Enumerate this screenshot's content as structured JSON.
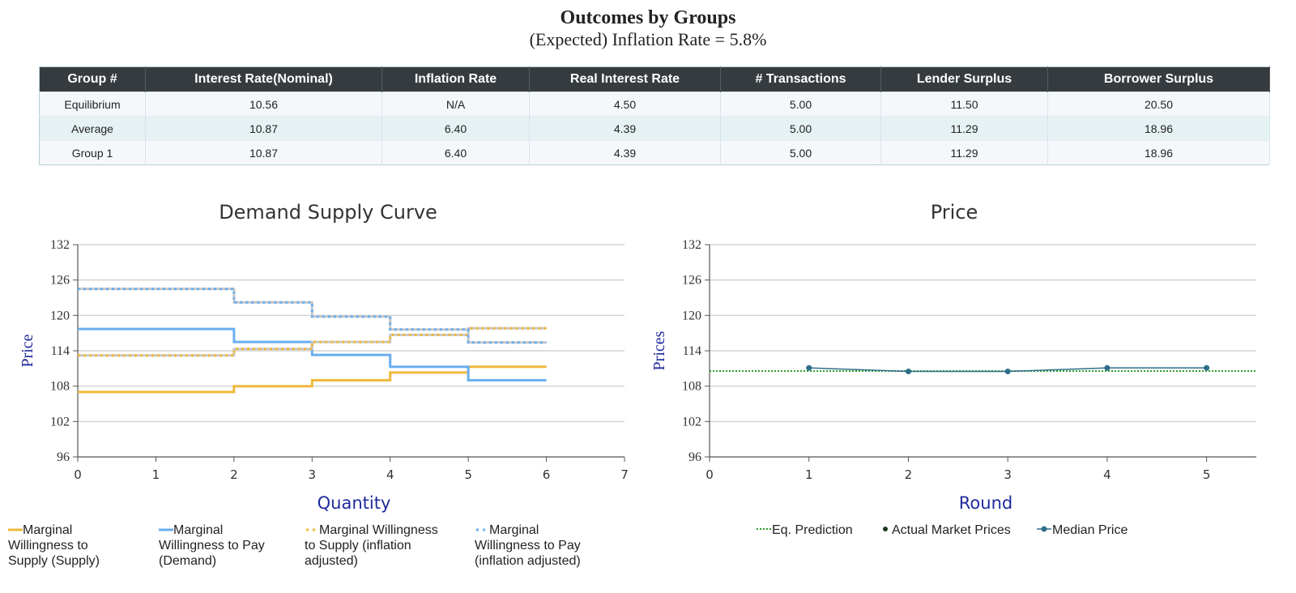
{
  "header": {
    "title": "Outcomes by Groups",
    "subtitle": "(Expected) Inflation Rate = 5.8%"
  },
  "table": {
    "columns": [
      "Group #",
      "Interest Rate(Nominal)",
      "Inflation Rate",
      "Real Interest Rate",
      "# Transactions",
      "Lender Surplus",
      "Borrower Surplus"
    ],
    "rows": [
      [
        "Equilibrium",
        "10.56",
        "N/A",
        "4.50",
        "5.00",
        "11.50",
        "20.50"
      ],
      [
        "Average",
        "10.87",
        "6.40",
        "4.39",
        "5.00",
        "11.29",
        "18.96"
      ],
      [
        "Group 1",
        "10.87",
        "6.40",
        "4.39",
        "5.00",
        "11.29",
        "18.96"
      ]
    ]
  },
  "chart_data": [
    {
      "type": "line",
      "step": true,
      "title": "Demand Supply Curve",
      "xlabel": "Quantity",
      "ylabel": "Price",
      "xlim": [
        0,
        7
      ],
      "ylim": [
        96,
        132
      ],
      "xticks": [
        0,
        1,
        2,
        3,
        4,
        5,
        6,
        7
      ],
      "yticks": [
        96,
        102,
        108,
        114,
        120,
        126,
        132
      ],
      "grid": true,
      "legend": "bottom",
      "series": [
        {
          "name": "Marginal Willingness to Supply (Supply)",
          "legend_lines": [
            "Marginal",
            "Willingness to",
            "Supply (Supply)"
          ],
          "color": "#f0b83c",
          "style": "solid",
          "x": [
            0,
            2,
            2,
            3,
            3,
            4,
            4,
            5,
            5,
            6
          ],
          "y": [
            107,
            107,
            108,
            108,
            109,
            109,
            110.3,
            110.3,
            111.3,
            111.3
          ]
        },
        {
          "name": "Marginal Willingness to Pay (Demand)",
          "legend_lines": [
            "Marginal",
            "Willingness to Pay",
            "(Demand)"
          ],
          "color": "#6aaef0",
          "style": "solid",
          "x": [
            0,
            2,
            2,
            3,
            3,
            4,
            4,
            5,
            5,
            6
          ],
          "y": [
            117.7,
            117.7,
            115.5,
            115.5,
            113.3,
            113.3,
            111.3,
            111.3,
            109,
            109
          ]
        },
        {
          "name": "Marginal Willingness to Supply (inflation adjusted)",
          "legend_lines": [
            "Marginal Willingness",
            "to Supply (inflation",
            "adjusted)"
          ],
          "color": "#f0b83c",
          "style": "dotted",
          "x": [
            0,
            2,
            2,
            3,
            3,
            4,
            4,
            5,
            5,
            6
          ],
          "y": [
            113.2,
            113.2,
            114.3,
            114.3,
            115.5,
            115.5,
            116.7,
            116.7,
            117.8,
            117.8
          ]
        },
        {
          "name": "Marginal Willingness to Pay (inflation adjusted)",
          "legend_lines": [
            "Marginal",
            "Willingness to Pay",
            "(inflation adjusted)"
          ],
          "color": "#6aaef0",
          "style": "dotted",
          "x": [
            0,
            2,
            2,
            3,
            3,
            4,
            4,
            5,
            5,
            6
          ],
          "y": [
            124.5,
            124.5,
            122.2,
            122.2,
            119.8,
            119.8,
            117.6,
            117.6,
            115.4,
            115.4
          ]
        }
      ]
    },
    {
      "type": "line",
      "title": "Price",
      "xlabel": "Round",
      "ylabel": "Prices",
      "xlim": [
        0,
        5.5
      ],
      "ylim": [
        96,
        132
      ],
      "xticks": [
        0,
        1,
        2,
        3,
        4,
        5
      ],
      "yticks": [
        96,
        102,
        108,
        114,
        120,
        126,
        132
      ],
      "grid": true,
      "legend": "bottom",
      "series": [
        {
          "name": "Eq. Prediction",
          "color": "#2e9e2e",
          "style": "dotted",
          "x": [
            0,
            5.5
          ],
          "y": [
            110.56,
            110.56
          ]
        },
        {
          "name": "Actual Market Prices",
          "color": "#1d3a1d",
          "style": "marker",
          "x": [
            1,
            2,
            3,
            4,
            5
          ],
          "y": [
            111.1,
            110.5,
            110.5,
            111.1,
            111.1
          ]
        },
        {
          "name": "Median Price",
          "color": "#2f6e8a",
          "style": "line-marker",
          "x": [
            1,
            2,
            3,
            4,
            5
          ],
          "y": [
            111.1,
            110.5,
            110.5,
            111.1,
            111.1
          ]
        }
      ]
    }
  ]
}
